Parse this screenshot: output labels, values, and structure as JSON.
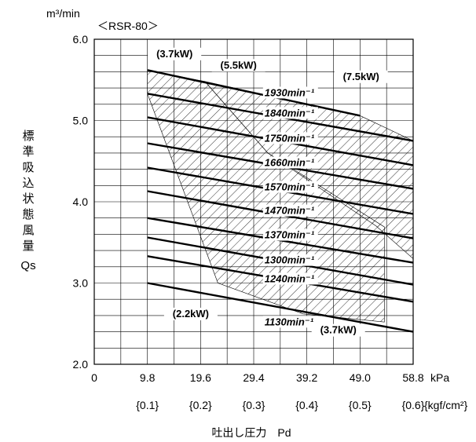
{
  "chart_data": {
    "type": "line",
    "title": "＜RSR-80＞",
    "y_unit_label": "m³/min",
    "ylabel_chars": [
      "標",
      "準",
      "吸",
      "込",
      "状",
      "態",
      "風",
      "量"
    ],
    "ylabel_symbol": "Qs",
    "xlabel": "吐出し圧力　Pd",
    "x_unit_label": "kPa",
    "x_kgf_unit_label": "{kgf/cm²}",
    "xlim": [
      0,
      58.8
    ],
    "ylim": [
      2.0,
      6.0
    ],
    "x_ticks": [
      "0",
      "9.8",
      "19.6",
      "29.4",
      "39.2",
      "49.0",
      "58.8"
    ],
    "x_kgf_ticks": [
      "{0.1}",
      "{0.2}",
      "{0.3}",
      "{0.4}",
      "{0.5}",
      "{0.6}"
    ],
    "y_ticks": [
      "2.0",
      "3.0",
      "4.0",
      "5.0",
      "6.0"
    ],
    "grid": true,
    "series": [
      {
        "name": "1930min⁻¹",
        "x": [
          9.8,
          49.0
        ],
        "y": [
          5.62,
          5.06
        ]
      },
      {
        "name": "1840min⁻¹",
        "x": [
          9.8,
          58.8
        ],
        "y": [
          5.33,
          4.75
        ]
      },
      {
        "name": "1750min⁻¹",
        "x": [
          9.8,
          58.8
        ],
        "y": [
          5.04,
          4.45
        ]
      },
      {
        "name": "1660min⁻¹",
        "x": [
          9.8,
          58.8
        ],
        "y": [
          4.72,
          4.16
        ]
      },
      {
        "name": "1570min⁻¹",
        "x": [
          9.8,
          58.8
        ],
        "y": [
          4.42,
          3.85
        ]
      },
      {
        "name": "1470min⁻¹",
        "x": [
          9.8,
          58.8
        ],
        "y": [
          4.13,
          3.55
        ]
      },
      {
        "name": "1370min⁻¹",
        "x": [
          9.8,
          58.8
        ],
        "y": [
          3.8,
          3.25
        ]
      },
      {
        "name": "1300min⁻¹",
        "x": [
          9.8,
          58.8
        ],
        "y": [
          3.56,
          2.98
        ]
      },
      {
        "name": "1240min⁻¹",
        "x": [
          9.8,
          58.8
        ],
        "y": [
          3.33,
          2.77
        ]
      },
      {
        "name": "1130min⁻¹",
        "x": [
          9.8,
          58.8
        ],
        "y": [
          3.0,
          2.4
        ]
      }
    ],
    "rpm_label_pos": [
      {
        "x": 31.4,
        "y": 5.3
      },
      {
        "x": 31.4,
        "y": 5.05
      },
      {
        "x": 31.4,
        "y": 4.74
      },
      {
        "x": 31.4,
        "y": 4.44
      },
      {
        "x": 31.4,
        "y": 4.14
      },
      {
        "x": 31.4,
        "y": 3.85
      },
      {
        "x": 31.4,
        "y": 3.55
      },
      {
        "x": 31.4,
        "y": 3.24
      },
      {
        "x": 31.4,
        "y": 3.01
      },
      {
        "x": 31.4,
        "y": 2.48
      }
    ],
    "power_regions": [
      {
        "polygon": [
          [
            9.8,
            5.62
          ],
          [
            20.4,
            5.48
          ],
          [
            32.0,
            4.6
          ],
          [
            53.5,
            3.69
          ],
          [
            53.5,
            2.52
          ],
          [
            38.5,
            2.62
          ],
          [
            22.8,
            3.0
          ],
          [
            9.8,
            5.33
          ]
        ]
      },
      {
        "polygon": [
          [
            20.4,
            5.48
          ],
          [
            49.0,
            5.06
          ],
          [
            58.8,
            4.75
          ],
          [
            58.8,
            3.3
          ],
          [
            52.0,
            3.7
          ],
          [
            32.0,
            4.6
          ]
        ]
      }
    ],
    "power_labels": [
      {
        "text": "(3.7kW)",
        "x": 14.8,
        "y": 5.78
      },
      {
        "text": "(5.5kW)",
        "x": 26.6,
        "y": 5.64
      },
      {
        "text": "(7.5kW)",
        "x": 49.2,
        "y": 5.5
      },
      {
        "text": "(2.2kW)",
        "x": 17.8,
        "y": 2.58
      },
      {
        "text": "(3.7kW)",
        "x": 45.0,
        "y": 2.38
      }
    ]
  }
}
